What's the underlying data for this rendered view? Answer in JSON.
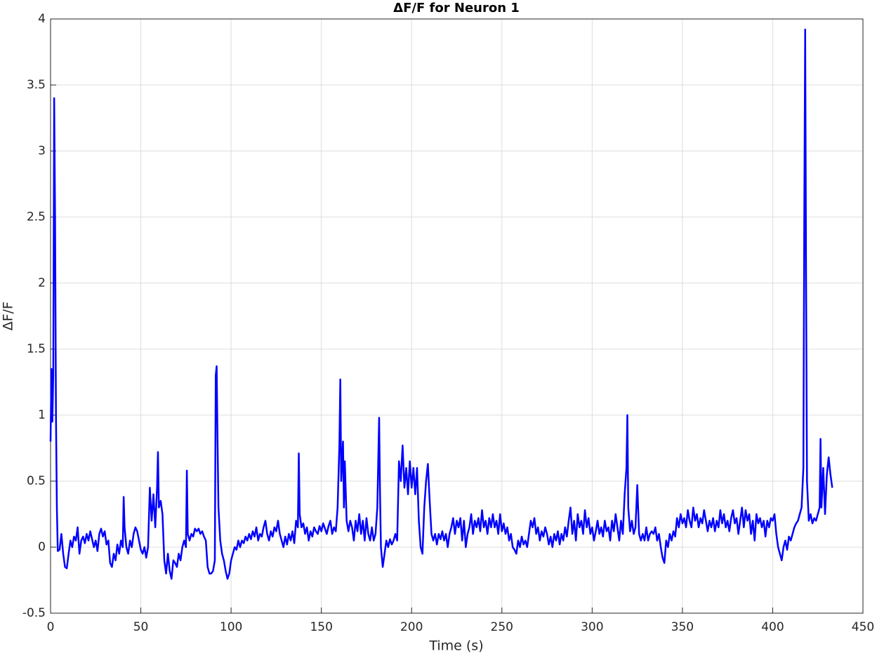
{
  "chart_data": {
    "type": "line",
    "title": "ΔF/F for Neuron 1",
    "x_label": "Time (s)",
    "y_label": "ΔF/F",
    "color": "#0000ff",
    "grid": true,
    "xlim": [
      0,
      450
    ],
    "xticks": [
      0,
      50,
      100,
      150,
      200,
      250,
      300,
      350,
      400,
      450
    ],
    "ylim": [
      -0.5,
      4
    ],
    "yticks": [
      -0.5,
      0,
      0.5,
      1,
      1.5,
      2,
      2.5,
      3,
      3.5,
      4
    ],
    "x": [
      0,
      0.5,
      1,
      1.5,
      2,
      2.5,
      3,
      3.5,
      4,
      5,
      6,
      7,
      8,
      9,
      10,
      11,
      12,
      13,
      14,
      15,
      16,
      17,
      18,
      19,
      20,
      21,
      22,
      23,
      24,
      25,
      26,
      27,
      28,
      29,
      30,
      31,
      32,
      33,
      34,
      35,
      36,
      37,
      38,
      39,
      40,
      40.5,
      41,
      42,
      43,
      44,
      45,
      46,
      47,
      48,
      49,
      50,
      51,
      52,
      53,
      54,
      55,
      56,
      57,
      58,
      59,
      59.5,
      60,
      61,
      62,
      63,
      64,
      65,
      66,
      67,
      68,
      69,
      70,
      71,
      72,
      73,
      74,
      75,
      75.5,
      76,
      77,
      78,
      79,
      80,
      81,
      82,
      83,
      84,
      85,
      86,
      87,
      88,
      89,
      90,
      91,
      91.5,
      92,
      92.5,
      93,
      94,
      95,
      96,
      97,
      98,
      99,
      100,
      101,
      102,
      103,
      104,
      105,
      106,
      107,
      108,
      109,
      110,
      111,
      112,
      113,
      114,
      115,
      116,
      117,
      118,
      119,
      120,
      121,
      122,
      123,
      124,
      125,
      126,
      127,
      128,
      129,
      130,
      131,
      132,
      133,
      134,
      135,
      136,
      137,
      137.5,
      138,
      139,
      140,
      141,
      142,
      143,
      144,
      145,
      146,
      147,
      148,
      149,
      150,
      151,
      152,
      153,
      154,
      155,
      156,
      157,
      158,
      159,
      160,
      160.5,
      161,
      162,
      162.5,
      163,
      164,
      165,
      166,
      167,
      168,
      169,
      170,
      171,
      172,
      173,
      174,
      175,
      176,
      177,
      178,
      179,
      180,
      181,
      182,
      182.5,
      183,
      184,
      185,
      186,
      187,
      188,
      189,
      190,
      191,
      192,
      193,
      194,
      195,
      196,
      197,
      198,
      199,
      200,
      201,
      202,
      203,
      204,
      205,
      206,
      207,
      208,
      209,
      210,
      211,
      212,
      213,
      214,
      215,
      216,
      217,
      218,
      219,
      220,
      221,
      222,
      223,
      224,
      225,
      226,
      227,
      228,
      229,
      230,
      231,
      232,
      233,
      234,
      235,
      236,
      237,
      238,
      239,
      240,
      241,
      242,
      243,
      244,
      245,
      246,
      247,
      248,
      249,
      250,
      251,
      252,
      253,
      254,
      255,
      256,
      257,
      258,
      259,
      260,
      261,
      262,
      263,
      264,
      265,
      266,
      267,
      268,
      269,
      270,
      271,
      272,
      273,
      274,
      275,
      276,
      277,
      278,
      279,
      280,
      281,
      282,
      283,
      284,
      285,
      286,
      287,
      288,
      289,
      290,
      291,
      292,
      293,
      294,
      295,
      296,
      297,
      298,
      299,
      300,
      301,
      302,
      303,
      304,
      305,
      306,
      307,
      308,
      309,
      310,
      311,
      312,
      313,
      314,
      315,
      316,
      317,
      318,
      319,
      319.5,
      320,
      321,
      322,
      323,
      324,
      325,
      326,
      327,
      328,
      329,
      330,
      331,
      332,
      333,
      334,
      335,
      336,
      337,
      338,
      339,
      340,
      341,
      342,
      343,
      344,
      345,
      346,
      347,
      348,
      349,
      350,
      351,
      352,
      353,
      354,
      355,
      356,
      357,
      358,
      359,
      360,
      361,
      362,
      363,
      364,
      365,
      366,
      367,
      368,
      369,
      370,
      371,
      372,
      373,
      374,
      375,
      376,
      377,
      378,
      379,
      380,
      381,
      382,
      383,
      384,
      385,
      386,
      387,
      388,
      389,
      390,
      391,
      392,
      393,
      394,
      395,
      396,
      397,
      398,
      399,
      400,
      401,
      402,
      403,
      404,
      405,
      406,
      407,
      408,
      409,
      410,
      411,
      412,
      413,
      414,
      415,
      416,
      417,
      417.5,
      418,
      418.5,
      419,
      420,
      421,
      422,
      423,
      424,
      425,
      426,
      426.5,
      427,
      428,
      429,
      430,
      431,
      432,
      433
    ],
    "values": [
      0.8,
      1.35,
      0.95,
      1.3,
      3.4,
      2.5,
      1.0,
      0.3,
      -0.03,
      -0.02,
      0.1,
      -0.05,
      -0.15,
      -0.16,
      -0.05,
      0.05,
      0.0,
      0.08,
      0.05,
      0.15,
      -0.05,
      0.05,
      0.08,
      0.03,
      0.1,
      0.05,
      0.12,
      0.06,
      0.0,
      0.05,
      -0.03,
      0.1,
      0.14,
      0.08,
      0.12,
      0.02,
      0.05,
      -0.12,
      -0.15,
      -0.05,
      -0.1,
      0.02,
      -0.05,
      0.05,
      0.0,
      0.38,
      0.15,
      0.0,
      -0.05,
      0.05,
      0.0,
      0.1,
      0.15,
      0.12,
      0.05,
      -0.02,
      -0.05,
      0.0,
      -0.08,
      0.0,
      0.45,
      0.2,
      0.4,
      0.15,
      0.45,
      0.72,
      0.3,
      0.35,
      0.25,
      -0.1,
      -0.2,
      -0.05,
      -0.18,
      -0.24,
      -0.1,
      -0.12,
      -0.15,
      -0.05,
      -0.1,
      0.0,
      0.05,
      0.0,
      0.58,
      0.1,
      0.05,
      0.1,
      0.08,
      0.14,
      0.12,
      0.14,
      0.1,
      0.12,
      0.08,
      0.05,
      -0.15,
      -0.2,
      -0.2,
      -0.18,
      -0.1,
      1.3,
      1.37,
      0.8,
      0.3,
      0.05,
      -0.05,
      -0.1,
      -0.18,
      -0.24,
      -0.2,
      -0.1,
      -0.05,
      0.0,
      -0.02,
      0.05,
      0.0,
      0.05,
      0.03,
      0.08,
      0.05,
      0.1,
      0.06,
      0.12,
      0.08,
      0.15,
      0.05,
      0.1,
      0.08,
      0.15,
      0.2,
      0.1,
      0.05,
      0.12,
      0.08,
      0.15,
      0.12,
      0.2,
      0.1,
      0.05,
      0.0,
      0.08,
      0.02,
      0.1,
      0.05,
      0.12,
      0.03,
      0.2,
      0.15,
      0.71,
      0.25,
      0.15,
      0.18,
      0.1,
      0.15,
      0.05,
      0.12,
      0.08,
      0.15,
      0.12,
      0.1,
      0.16,
      0.12,
      0.18,
      0.14,
      0.1,
      0.16,
      0.2,
      0.1,
      0.15,
      0.12,
      0.3,
      0.78,
      1.27,
      0.5,
      0.8,
      0.3,
      0.65,
      0.2,
      0.12,
      0.2,
      0.15,
      0.05,
      0.2,
      0.12,
      0.25,
      0.1,
      0.2,
      0.05,
      0.22,
      0.1,
      0.05,
      0.15,
      0.05,
      0.1,
      0.3,
      0.98,
      0.4,
      0.0,
      -0.15,
      -0.05,
      0.05,
      0.0,
      0.06,
      0.02,
      0.05,
      0.1,
      0.05,
      0.65,
      0.5,
      0.77,
      0.45,
      0.6,
      0.4,
      0.65,
      0.45,
      0.6,
      0.4,
      0.6,
      0.2,
      0.0,
      -0.05,
      0.3,
      0.5,
      0.63,
      0.35,
      0.1,
      0.05,
      0.1,
      0.02,
      0.1,
      0.06,
      0.12,
      0.05,
      0.1,
      0.0,
      0.1,
      0.15,
      0.22,
      0.1,
      0.2,
      0.15,
      0.22,
      0.05,
      0.2,
      0.0,
      0.1,
      0.15,
      0.25,
      0.1,
      0.2,
      0.15,
      0.22,
      0.12,
      0.28,
      0.15,
      0.2,
      0.1,
      0.22,
      0.15,
      0.25,
      0.15,
      0.2,
      0.1,
      0.25,
      0.12,
      0.18,
      0.1,
      0.15,
      0.05,
      0.1,
      0.0,
      -0.02,
      -0.05,
      0.05,
      0.0,
      0.08,
      0.02,
      0.05,
      0.0,
      0.1,
      0.2,
      0.15,
      0.22,
      0.1,
      0.15,
      0.05,
      0.12,
      0.08,
      0.15,
      0.1,
      0.02,
      0.08,
      0.0,
      0.1,
      0.05,
      0.12,
      0.02,
      0.1,
      0.05,
      0.15,
      0.08,
      0.2,
      0.3,
      0.1,
      0.2,
      0.05,
      0.25,
      0.15,
      0.2,
      0.1,
      0.28,
      0.15,
      0.22,
      0.1,
      0.15,
      0.05,
      0.12,
      0.2,
      0.1,
      0.15,
      0.08,
      0.2,
      0.12,
      0.15,
      0.05,
      0.2,
      0.12,
      0.25,
      0.15,
      0.05,
      0.2,
      0.1,
      0.4,
      0.6,
      1.0,
      0.3,
      0.12,
      0.2,
      0.1,
      0.15,
      0.47,
      0.1,
      0.05,
      0.1,
      0.05,
      0.15,
      0.05,
      0.1,
      0.12,
      0.1,
      0.15,
      0.05,
      0.1,
      0.0,
      -0.08,
      -0.12,
      0.05,
      0.0,
      0.1,
      0.05,
      0.12,
      0.08,
      0.22,
      0.15,
      0.25,
      0.18,
      0.22,
      0.15,
      0.28,
      0.2,
      0.15,
      0.3,
      0.2,
      0.25,
      0.15,
      0.22,
      0.18,
      0.28,
      0.2,
      0.12,
      0.2,
      0.15,
      0.22,
      0.12,
      0.2,
      0.15,
      0.28,
      0.18,
      0.25,
      0.15,
      0.2,
      0.12,
      0.22,
      0.28,
      0.18,
      0.22,
      0.1,
      0.2,
      0.3,
      0.15,
      0.28,
      0.2,
      0.25,
      0.1,
      0.2,
      0.05,
      0.25,
      0.18,
      0.22,
      0.15,
      0.2,
      0.08,
      0.2,
      0.15,
      0.22,
      0.2,
      0.25,
      0.1,
      0.0,
      -0.05,
      -0.1,
      0.0,
      0.05,
      -0.02,
      0.08,
      0.05,
      0.1,
      0.15,
      0.18,
      0.2,
      0.25,
      0.3,
      0.6,
      2.5,
      3.92,
      2.0,
      0.5,
      0.2,
      0.25,
      0.18,
      0.22,
      0.2,
      0.25,
      0.3,
      0.82,
      0.3,
      0.6,
      0.25,
      0.55,
      0.68,
      0.55,
      0.45
    ]
  }
}
